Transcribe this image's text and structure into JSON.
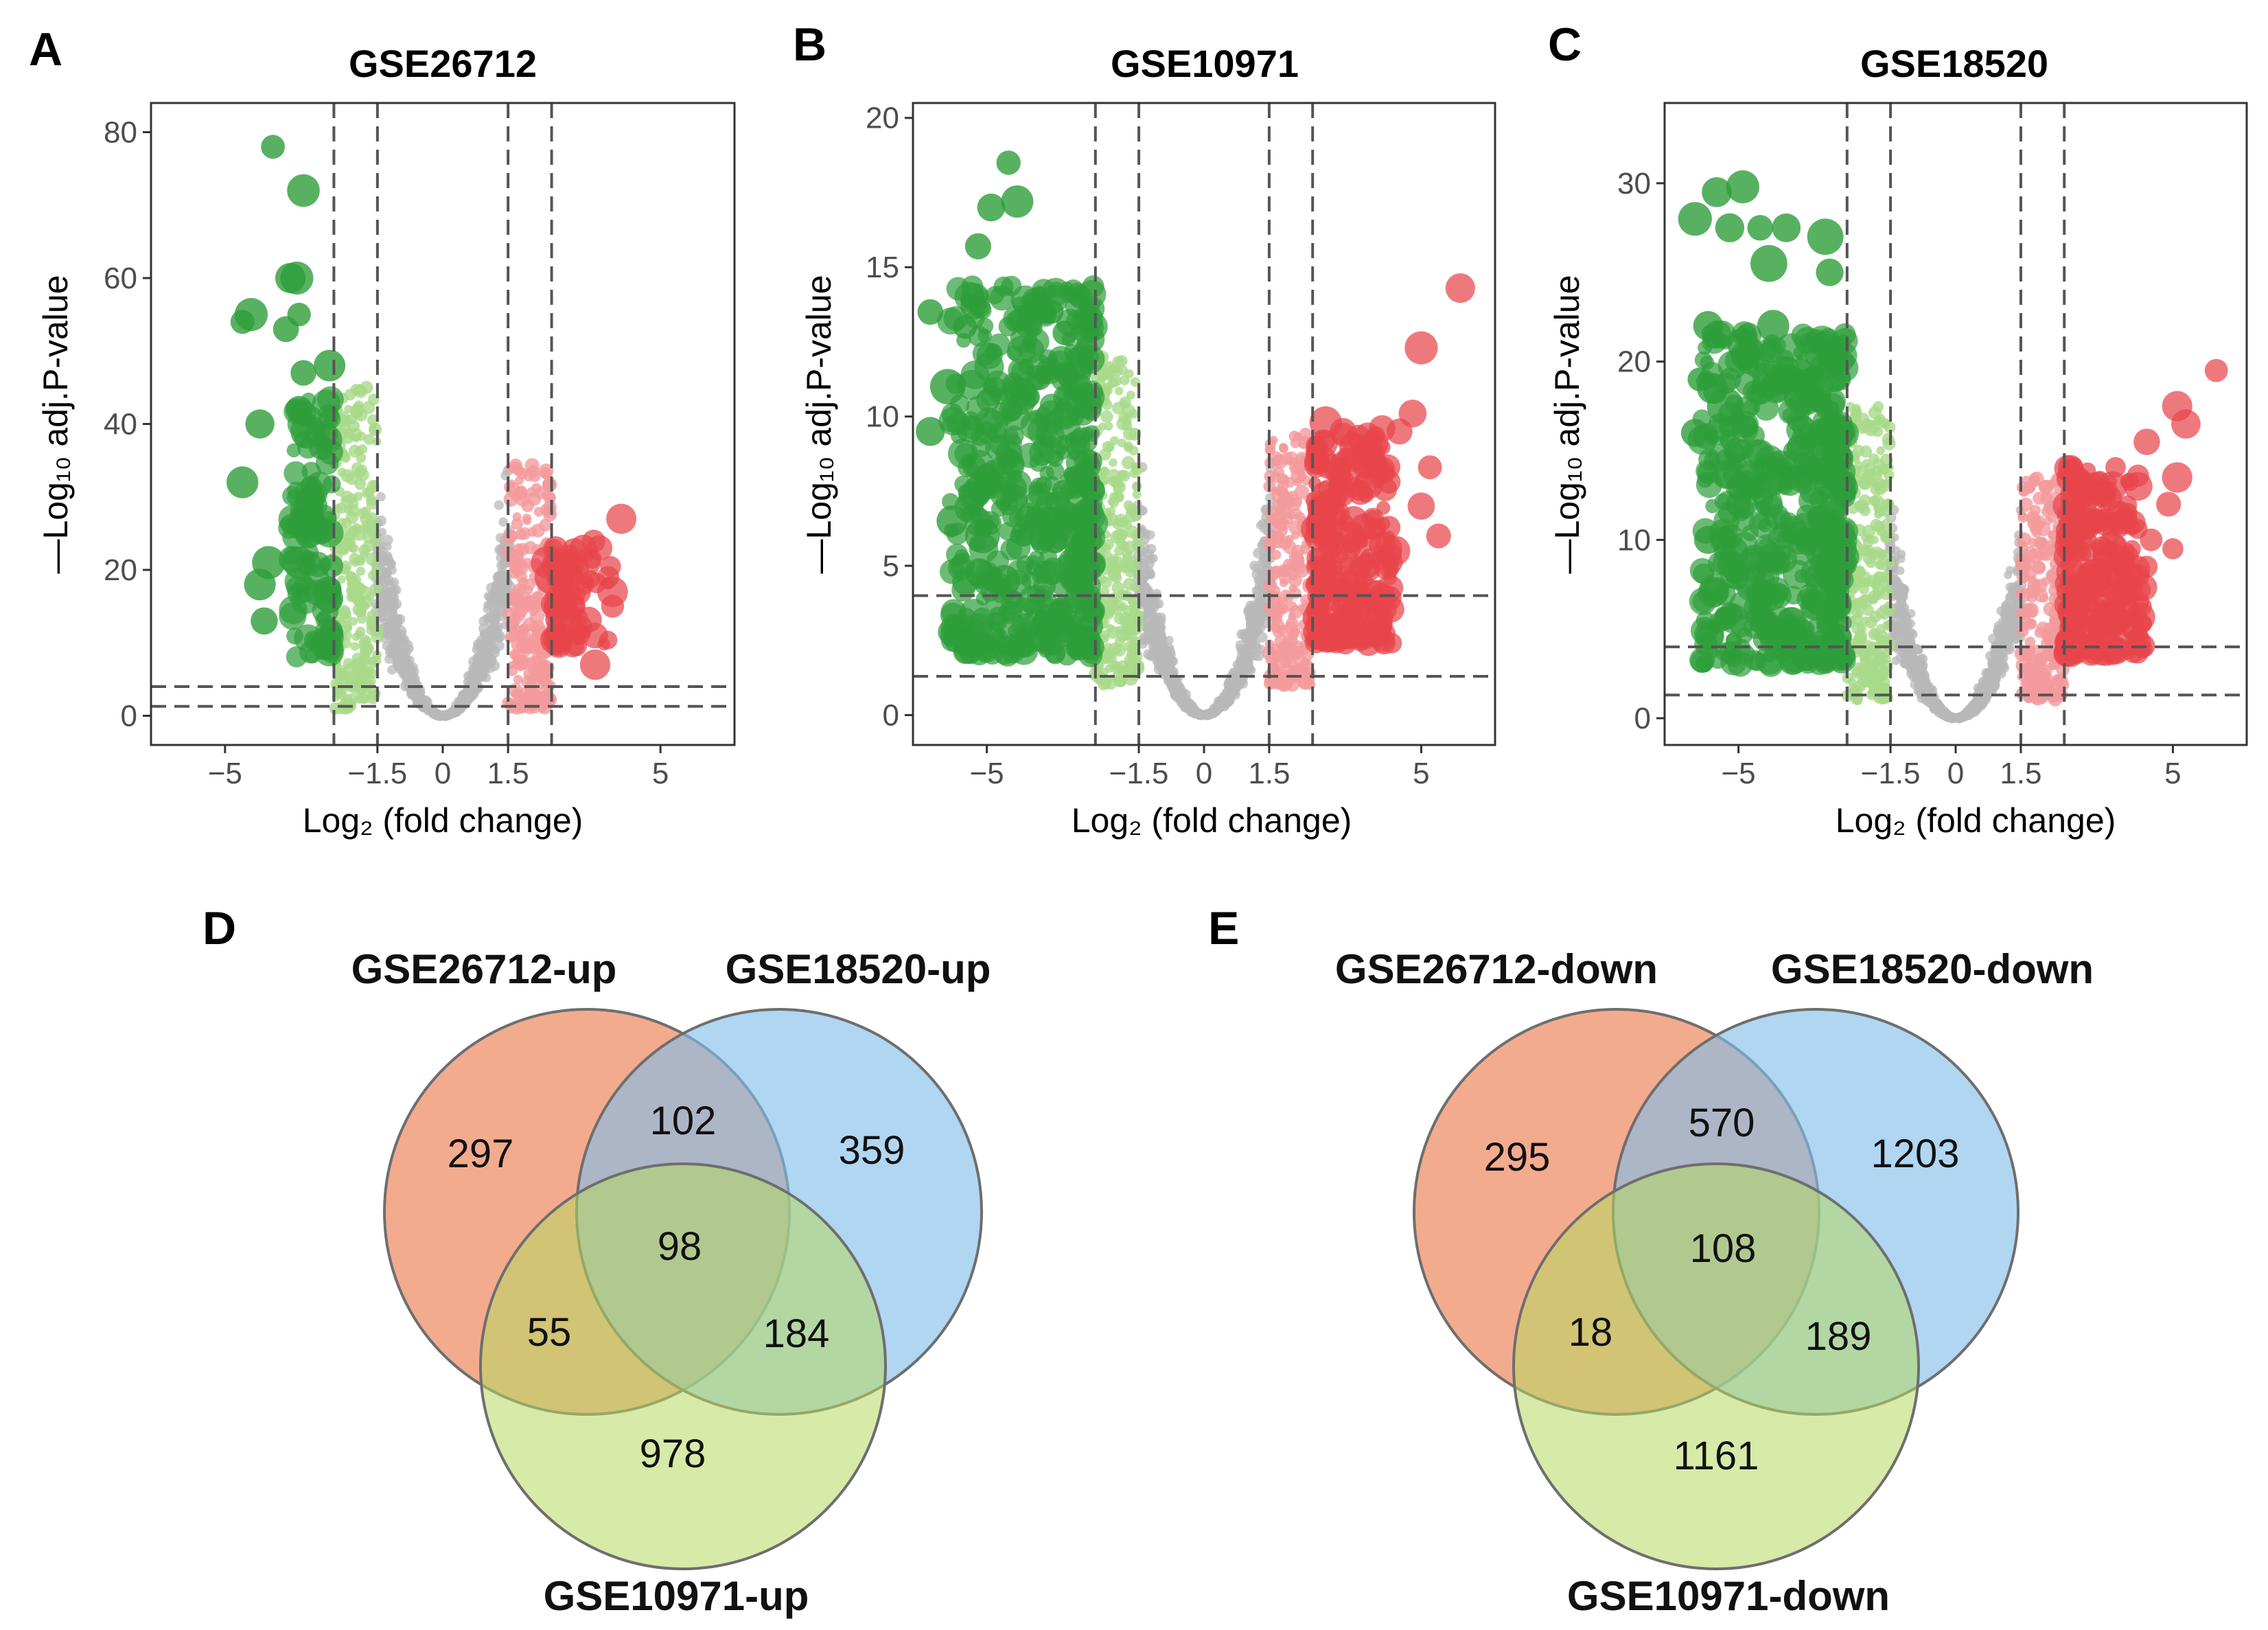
{
  "panels": [
    {
      "letter": "A"
    },
    {
      "letter": "B"
    },
    {
      "letter": "C"
    },
    {
      "letter": "D"
    },
    {
      "letter": "E"
    }
  ],
  "colors": {
    "sig_down": "#2e9e3a",
    "mod_down": "#a8d98a",
    "nonsig": "#b8b8b8",
    "mod_up": "#f49a9c",
    "sig_up": "#e8454b",
    "venn_1": "#ee8a62",
    "venn_2": "#7fbde8",
    "venn_3": "#b6d860"
  },
  "chart_data": [
    {
      "type": "scatter",
      "subtype": "volcano",
      "panel": "A",
      "title": "GSE26712",
      "xlabel": "Log₂ (fold change)",
      "ylabel": "—Log₁₀ adj.P-value",
      "xlim": [
        -6.7,
        6.7
      ],
      "ylim": [
        -4,
        84
      ],
      "xticks": [
        -5,
        -1.5,
        0,
        1.5,
        5
      ],
      "yticks": [
        0,
        20,
        40,
        60,
        80
      ],
      "vlines": [
        -2.5,
        -1.5,
        1.5,
        2.5
      ],
      "hlines": [
        1.3,
        4
      ],
      "seed": 11,
      "highlights_down": [
        [
          -3.9,
          78
        ],
        [
          -3.2,
          72
        ],
        [
          -3.5,
          60
        ],
        [
          -3.35,
          60
        ],
        [
          -4.6,
          54
        ],
        [
          -4.4,
          55
        ],
        [
          -3.3,
          55
        ],
        [
          -3.6,
          53
        ],
        [
          -2.6,
          48
        ],
        [
          -4.2,
          40
        ],
        [
          -3.2,
          47
        ],
        [
          -3.3,
          42
        ],
        [
          -4.6,
          32
        ],
        [
          -3.1,
          39
        ],
        [
          -4.0,
          21
        ],
        [
          -4.2,
          18
        ],
        [
          -4.1,
          13
        ],
        [
          -3.3,
          21
        ],
        [
          -3.0,
          30
        ]
      ],
      "highlights_up": [
        [
          4.1,
          27
        ],
        [
          3.6,
          23
        ],
        [
          3.3,
          21
        ],
        [
          2.5,
          19
        ],
        [
          3.1,
          17
        ],
        [
          3.9,
          17
        ],
        [
          2.4,
          21
        ],
        [
          3.8,
          19
        ],
        [
          2.7,
          15
        ],
        [
          3.5,
          11
        ],
        [
          2.9,
          13
        ],
        [
          3.5,
          7
        ]
      ]
    },
    {
      "type": "scatter",
      "subtype": "volcano",
      "panel": "B",
      "title": "GSE10971",
      "xlabel": "Log₂ (fold change)",
      "ylabel": "—Log₁₀ adj.P-value",
      "xlim": [
        -6.7,
        6.7
      ],
      "ylim": [
        -1,
        20.5
      ],
      "xticks": [
        -5,
        -1.5,
        0,
        1.5,
        5
      ],
      "yticks": [
        0,
        5,
        10,
        15,
        20
      ],
      "vlines": [
        -2.5,
        -1.5,
        1.5,
        2.5
      ],
      "hlines": [
        1.3,
        4
      ],
      "seed": 23,
      "highlights_down": [
        [
          -5.2,
          15.7
        ],
        [
          -5.5,
          13.0
        ],
        [
          -6.3,
          13.5
        ],
        [
          -5.9,
          11.0
        ],
        [
          -6.3,
          9.5
        ],
        [
          -5.8,
          6.5
        ],
        [
          -5.1,
          6.0
        ],
        [
          -4.9,
          17.0
        ],
        [
          -4.3,
          17.2
        ],
        [
          -4.5,
          18.5
        ],
        [
          -5.0,
          8.0
        ],
        [
          -4.6,
          4.5
        ],
        [
          -3.8,
          11.3
        ],
        [
          -3.5,
          13.5
        ],
        [
          -3.2,
          12.8
        ]
      ],
      "highlights_up": [
        [
          5.9,
          14.3
        ],
        [
          5.0,
          12.3
        ],
        [
          5.2,
          8.3
        ],
        [
          5.4,
          6.0
        ],
        [
          4.8,
          10.1
        ],
        [
          4.5,
          9.5
        ],
        [
          4.1,
          9.6
        ],
        [
          5.0,
          7.0
        ],
        [
          4.4,
          5.5
        ],
        [
          3.8,
          9.0
        ],
        [
          3.2,
          9.5
        ],
        [
          2.8,
          9.8
        ]
      ]
    },
    {
      "type": "scatter",
      "subtype": "volcano",
      "panel": "C",
      "title": "GSE18520",
      "xlabel": "Log₂ (fold change)",
      "ylabel": "—Log₁₀ adj.P-value",
      "xlim": [
        -6.7,
        6.7
      ],
      "ylim": [
        -1.5,
        34.5
      ],
      "xticks": [
        -5,
        -1.5,
        0,
        1.5,
        5
      ],
      "yticks": [
        0,
        10,
        20,
        30
      ],
      "vlines": [
        -2.5,
        -1.5,
        1.5,
        2.5
      ],
      "hlines": [
        1.3,
        4
      ],
      "seed": 37,
      "highlights_down": [
        [
          -5.5,
          29.5
        ],
        [
          -6.0,
          28.0
        ],
        [
          -4.9,
          29.8
        ],
        [
          -5.2,
          27.5
        ],
        [
          -4.5,
          27.5
        ],
        [
          -3.9,
          27.5
        ],
        [
          -3.0,
          27.0
        ],
        [
          -2.9,
          25.0
        ],
        [
          -4.3,
          25.5
        ],
        [
          -5.7,
          22.0
        ],
        [
          -5.9,
          19.0
        ],
        [
          -4.9,
          21.0
        ],
        [
          -4.2,
          22.0
        ],
        [
          -5.3,
          17.5
        ],
        [
          -5.0,
          12.0
        ],
        [
          -5.7,
          10.0
        ],
        [
          -6.0,
          16.0
        ],
        [
          -4.0,
          19.0
        ],
        [
          -5.6,
          18.5
        ],
        [
          -4.4,
          7.0
        ]
      ],
      "highlights_up": [
        [
          6.0,
          19.5
        ],
        [
          5.1,
          17.5
        ],
        [
          5.3,
          16.5
        ],
        [
          4.4,
          15.5
        ],
        [
          5.1,
          13.5
        ],
        [
          4.9,
          12.0
        ],
        [
          4.2,
          13.0
        ],
        [
          3.6,
          13.0
        ],
        [
          4.5,
          10.0
        ],
        [
          5.0,
          9.5
        ],
        [
          3.2,
          11.0
        ],
        [
          3.9,
          8.5
        ],
        [
          4.4,
          8.5
        ],
        [
          3.2,
          8.0
        ],
        [
          3.7,
          5.5
        ]
      ]
    },
    {
      "type": "venn",
      "panel": "D",
      "sets": [
        "GSE26712-up",
        "GSE18520-up",
        "GSE10971-up"
      ],
      "regions": {
        "only_1": 297,
        "only_2": 359,
        "only_3": 978,
        "1_2": 102,
        "1_3": 55,
        "2_3": 184,
        "all": 98
      }
    },
    {
      "type": "venn",
      "panel": "E",
      "sets": [
        "GSE26712-down",
        "GSE18520-down",
        "GSE10971-down"
      ],
      "regions": {
        "only_1": 295,
        "only_2": 1203,
        "only_3": 1161,
        "1_2": 570,
        "1_3": 18,
        "2_3": 189,
        "all": 108
      }
    }
  ]
}
